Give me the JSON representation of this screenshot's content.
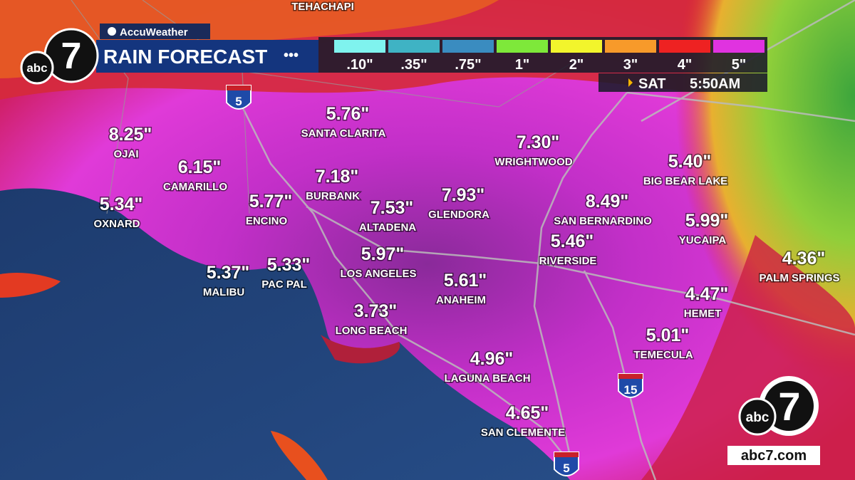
{
  "header": {
    "provider": "AccuWeather",
    "title": "RAIN FORECAST",
    "time_day": "SAT",
    "time": "5:50AM"
  },
  "logo": {
    "network": "abc",
    "channel": "7",
    "website": "abc7.com"
  },
  "legend": [
    {
      "label": ".10\"",
      "color": "#7ff3ee"
    },
    {
      "label": ".35\"",
      "color": "#3fb3c4"
    },
    {
      "label": ".75\"",
      "color": "#3a8cc0"
    },
    {
      "label": "1\"",
      "color": "#7ee83a"
    },
    {
      "label": "2\"",
      "color": "#f2f52c"
    },
    {
      "label": "3\"",
      "color": "#f79a2a"
    },
    {
      "label": "4\"",
      "color": "#ee2222"
    },
    {
      "label": "5\"",
      "color": "#e033e0"
    }
  ],
  "top_label": "TEHACHAPI",
  "highways": [
    "5",
    "15",
    "5"
  ],
  "cities": [
    {
      "amount": "5.76\"",
      "name": "SANTA CLARITA"
    },
    {
      "amount": "8.25\"",
      "name": "OJAI"
    },
    {
      "amount": "6.15\"",
      "name": "CAMARILLO"
    },
    {
      "amount": "5.34\"",
      "name": "OXNARD"
    },
    {
      "amount": "5.77\"",
      "name": "ENCINO"
    },
    {
      "amount": "7.18\"",
      "name": "BURBANK"
    },
    {
      "amount": "7.53\"",
      "name": "ALTADENA"
    },
    {
      "amount": "7.93\"",
      "name": "GLENDORA"
    },
    {
      "amount": "7.30\"",
      "name": "WRIGHTWOOD"
    },
    {
      "amount": "5.40\"",
      "name": "BIG BEAR LAKE"
    },
    {
      "amount": "8.49\"",
      "name": "SAN BERNARDINO"
    },
    {
      "amount": "5.99\"",
      "name": "YUCAIPA"
    },
    {
      "amount": "5.46\"",
      "name": "RIVERSIDE"
    },
    {
      "amount": "4.36\"",
      "name": "PALM SPRINGS"
    },
    {
      "amount": "5.37\"",
      "name": "MALIBU"
    },
    {
      "amount": "5.33\"",
      "name": "PAC PAL"
    },
    {
      "amount": "5.97\"",
      "name": "LOS ANGELES"
    },
    {
      "amount": "5.61\"",
      "name": "ANAHEIM"
    },
    {
      "amount": "4.47\"",
      "name": "HEMET"
    },
    {
      "amount": "3.73\"",
      "name": "LONG BEACH"
    },
    {
      "amount": "5.01\"",
      "name": "TEMECULA"
    },
    {
      "amount": "4.96\"",
      "name": "LAGUNA BEACH"
    },
    {
      "amount": "4.65\"",
      "name": "SAN CLEMENTE"
    }
  ]
}
